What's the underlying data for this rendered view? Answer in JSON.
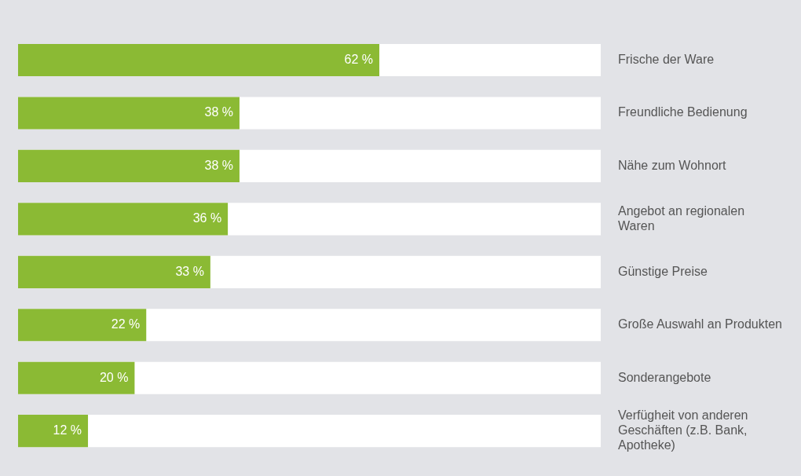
{
  "chart_data": {
    "type": "bar",
    "orientation": "horizontal",
    "categories": [
      "Frische der Ware",
      "Freundliche Bedienung",
      "Nähe zum Wohnort",
      "Angebot an regionalen Waren",
      "Günstige Preise",
      "Große Auswahl an Produkten",
      "Sonderangebote",
      "Verfügheit von anderen Geschäften (z.B. Bank, Apotheke)"
    ],
    "values": [
      62,
      38,
      38,
      36,
      33,
      22,
      20,
      12
    ],
    "value_labels": [
      "62 %",
      "38 %",
      "38 %",
      "36 %",
      "33 %",
      "22 %",
      "20 %",
      "12 %"
    ],
    "color": "#8bba34",
    "xlim": [
      0,
      100
    ],
    "legend": false
  }
}
